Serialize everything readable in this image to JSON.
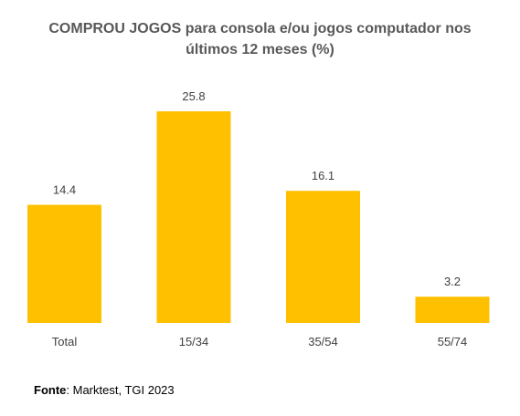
{
  "title_bold": "COMPROU JOGOS",
  "title_rest": " para consola e/ou jogos computador nos últimos 12 meses (%)",
  "source": {
    "key": "Fonte",
    "value": ": Marktest, TGI 2023"
  },
  "colors": {
    "bar": "#FFC000",
    "text": "#404040"
  },
  "chart_data": {
    "type": "bar",
    "title": "COMPROU JOGOS para consola e/ou jogos computador nos últimos 12 meses (%)",
    "categories": [
      "Total",
      "15/34",
      "35/54",
      "55/74"
    ],
    "values": [
      14.4,
      25.8,
      16.1,
      3.2
    ],
    "data_labels": [
      "14.4",
      "25.8",
      "16.1",
      "3.2"
    ],
    "xlabel": "",
    "ylabel": "",
    "ylim": [
      0,
      25.8
    ],
    "grid": false,
    "legend": "none"
  }
}
